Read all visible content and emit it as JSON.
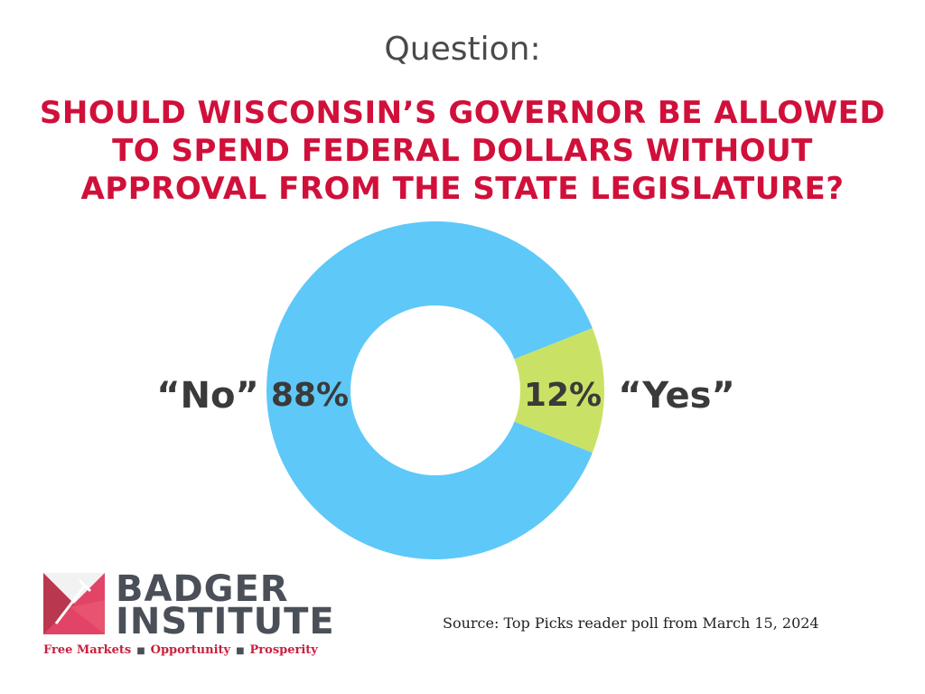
{
  "header": {
    "question_label": "Question:",
    "question_text": "SHOULD WISCONSIN’S GOVERNOR BE ALLOWED TO SPEND FEDERAL DOLLARS WITHOUT APPROVAL FROM THE STATE LEGISLATURE?"
  },
  "chart_data": {
    "type": "pie",
    "categories": [
      "“No”",
      "“Yes”"
    ],
    "values": [
      88,
      12
    ],
    "value_labels": [
      "88%",
      "12%"
    ],
    "colors": [
      "#5ec8f8",
      "#c9e265"
    ],
    "donut": true
  },
  "logo": {
    "line1": "BADGER",
    "line2": "INSTITUTE",
    "tagline": [
      "Free Markets",
      "Opportunity",
      "Prosperity"
    ],
    "separator": "■",
    "colors": {
      "red": "#d0103a",
      "gray": "#4a4f58"
    }
  },
  "source": "Source: Top Picks reader poll from March 15, 2024"
}
